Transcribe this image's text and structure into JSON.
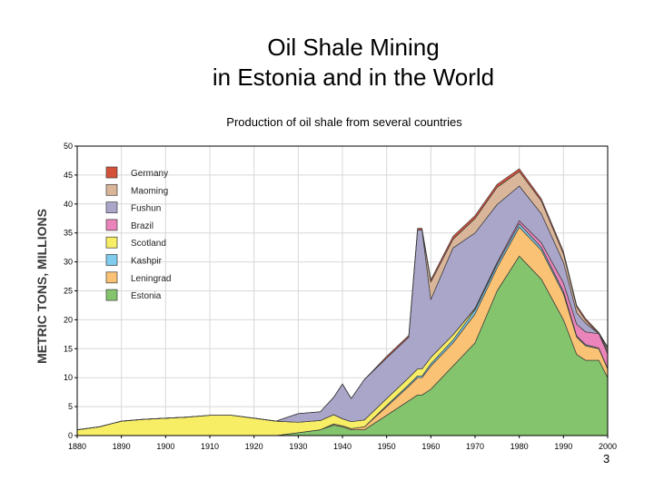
{
  "slide": {
    "title_line1": "Oil Shale Mining",
    "title_line2": "in Estonia and in the World",
    "page_number": "3"
  },
  "chart_data": {
    "type": "area",
    "stacked": true,
    "title": "Production of oil shale from several countries",
    "xlabel": "",
    "ylabel": "METRIC TONS, MILLIONS",
    "xlim": [
      1880,
      2000
    ],
    "ylim": [
      0,
      50
    ],
    "x_ticks": [
      "1880",
      "1890",
      "1900",
      "1910",
      "1920",
      "1930",
      "1940",
      "1950",
      "1960",
      "1970",
      "1980",
      "1990",
      "2000"
    ],
    "y_ticks": [
      "0",
      "5",
      "10",
      "15",
      "20",
      "25",
      "30",
      "35",
      "40",
      "45",
      "50"
    ],
    "grid": true,
    "legend_position": "top-left",
    "x": [
      1880,
      1885,
      1890,
      1895,
      1900,
      1905,
      1910,
      1915,
      1920,
      1925,
      1930,
      1935,
      1938,
      1940,
      1942,
      1945,
      1950,
      1955,
      1957,
      1958,
      1960,
      1965,
      1970,
      1975,
      1980,
      1985,
      1990,
      1993,
      1995,
      1998,
      2000
    ],
    "series": [
      {
        "name": "Estonia",
        "color": "#84c46c",
        "values": [
          0,
          0,
          0,
          0,
          0,
          0,
          0,
          0,
          0,
          0,
          0.5,
          1,
          1.8,
          1.5,
          1,
          1,
          3.5,
          6,
          7,
          7,
          8,
          12,
          16,
          25,
          31,
          27,
          20,
          14,
          13,
          13,
          10
        ]
      },
      {
        "name": "Leningrad",
        "color": "#f9c274",
        "values": [
          0,
          0,
          0,
          0,
          0,
          0,
          0,
          0,
          0,
          0,
          0,
          0,
          0.2,
          0.2,
          0.2,
          0.5,
          1.5,
          2.5,
          3,
          3,
          4,
          4,
          5,
          4,
          5,
          5,
          4.5,
          3,
          2.5,
          2,
          1.5
        ]
      },
      {
        "name": "Kashpir",
        "color": "#7fccec",
        "values": [
          0,
          0,
          0,
          0,
          0,
          0,
          0,
          0,
          0,
          0,
          0,
          0,
          0,
          0,
          0,
          0,
          0.2,
          0.3,
          0.3,
          0.3,
          0.4,
          0.5,
          0.7,
          0.6,
          0.6,
          0.5,
          0.4,
          0.2,
          0.2,
          0.1,
          0.1
        ]
      },
      {
        "name": "Scotland",
        "color": "#f8ee66",
        "values": [
          1,
          1.5,
          2.5,
          2.8,
          3,
          3.2,
          3.5,
          3.5,
          3,
          2.5,
          1.8,
          1.6,
          1.6,
          1.2,
          1.2,
          1.2,
          1.2,
          1.2,
          1.2,
          1.2,
          1.1,
          0.9,
          0.2,
          0,
          0,
          0,
          0,
          0,
          0,
          0,
          0
        ]
      },
      {
        "name": "Brazil",
        "color": "#ea84ba",
        "values": [
          0,
          0,
          0,
          0,
          0,
          0,
          0,
          0,
          0,
          0,
          0,
          0,
          0,
          0,
          0,
          0,
          0,
          0,
          0,
          0,
          0,
          0,
          0.1,
          0.3,
          0.5,
          0.8,
          1.5,
          2,
          2.2,
          2.5,
          2.5
        ]
      },
      {
        "name": "Fushun",
        "color": "#aaa6ca",
        "values": [
          0,
          0,
          0,
          0,
          0,
          0,
          0,
          0,
          0,
          0,
          1.5,
          1.5,
          3,
          6,
          4,
          7,
          7,
          7,
          24,
          24,
          10,
          15,
          13,
          10,
          6,
          5,
          3.5,
          2,
          1.5,
          0,
          0.5
        ]
      },
      {
        "name": "Maoming",
        "color": "#d9b69a",
        "values": [
          0,
          0,
          0,
          0,
          0,
          0,
          0,
          0,
          0,
          0,
          0,
          0,
          0,
          0,
          0,
          0,
          0,
          0,
          0,
          0,
          3,
          1.5,
          2.5,
          3,
          2.5,
          2.2,
          1.5,
          1,
          0.5,
          0,
          0.5
        ]
      },
      {
        "name": "Germany",
        "color": "#d4523a",
        "values": [
          0,
          0,
          0,
          0,
          0,
          0,
          0,
          0,
          0,
          0,
          0,
          0,
          0,
          0,
          0,
          0,
          0.3,
          0.3,
          0.3,
          0.3,
          0.4,
          0.5,
          0.5,
          0.5,
          0.5,
          0.4,
          0.4,
          0.3,
          0.3,
          0.2,
          0.2
        ]
      }
    ]
  }
}
